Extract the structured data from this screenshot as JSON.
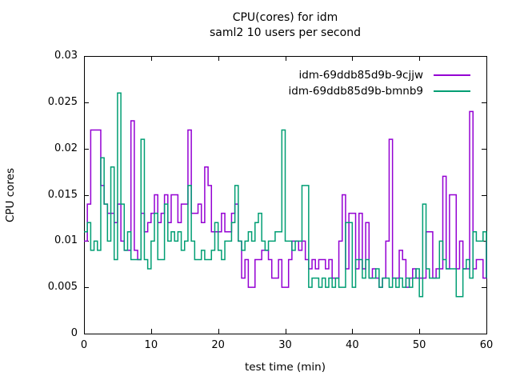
{
  "chart_data": {
    "type": "line",
    "style": "steps",
    "title": "CPU(cores) for idm",
    "subtitle": "saml2 10 users per second",
    "xlabel": "test time (min)",
    "ylabel": "CPU cores",
    "xlim": [
      0,
      60
    ],
    "ylim": [
      0,
      0.03
    ],
    "xticks": [
      0,
      10,
      20,
      30,
      40,
      50,
      60
    ],
    "xtick_labels": [
      "0",
      "10",
      "20",
      "30",
      "40",
      "50",
      "60"
    ],
    "yticks": [
      0,
      0.005,
      0.01,
      0.015,
      0.02,
      0.025,
      0.03
    ],
    "ytick_labels": [
      "0",
      "0.005",
      "0.01",
      "0.015",
      "0.02",
      "0.025",
      "0.03"
    ],
    "grid": false,
    "legend_position": "top-right-inside",
    "axis_color": "#000000",
    "x_start": 0,
    "x_step": 0.5,
    "series": [
      {
        "name": "idm-69ddb85d9b-9cjjw",
        "color": "#9400d3",
        "values": [
          0.01,
          0.014,
          0.022,
          0.022,
          0.022,
          0.016,
          0.014,
          0.013,
          0.013,
          0.012,
          0.014,
          0.01,
          0.009,
          0.009,
          0.023,
          0.009,
          0.008,
          0.013,
          0.011,
          0.012,
          0.013,
          0.015,
          0.012,
          0.013,
          0.015,
          0.012,
          0.015,
          0.015,
          0.012,
          0.014,
          0.014,
          0.022,
          0.013,
          0.013,
          0.014,
          0.012,
          0.018,
          0.016,
          0.011,
          0.011,
          0.011,
          0.013,
          0.011,
          0.011,
          0.013,
          0.014,
          0.01,
          0.006,
          0.008,
          0.005,
          0.005,
          0.008,
          0.008,
          0.009,
          0.009,
          0.008,
          0.006,
          0.006,
          0.008,
          0.005,
          0.005,
          0.008,
          0.01,
          0.01,
          0.009,
          0.01,
          0.008,
          0.007,
          0.008,
          0.007,
          0.008,
          0.008,
          0.007,
          0.008,
          0.006,
          0.006,
          0.01,
          0.015,
          0.007,
          0.013,
          0.013,
          0.007,
          0.013,
          0.007,
          0.012,
          0.006,
          0.007,
          0.006,
          0.005,
          0.006,
          0.01,
          0.021,
          0.006,
          0.006,
          0.009,
          0.008,
          0.005,
          0.006,
          0.007,
          0.006,
          0.006,
          0.006,
          0.011,
          0.011,
          0.006,
          0.007,
          0.007,
          0.017,
          0.007,
          0.015,
          0.015,
          0.007,
          0.01,
          0.007,
          0.007,
          0.024,
          0.007,
          0.008,
          0.008,
          0.006,
          0.01
        ]
      },
      {
        "name": "idm-69ddb85d9b-bmnb9",
        "color": "#009e73",
        "values": [
          0.011,
          0.012,
          0.009,
          0.01,
          0.009,
          0.019,
          0.014,
          0.01,
          0.018,
          0.008,
          0.026,
          0.014,
          0.009,
          0.011,
          0.008,
          0.008,
          0.008,
          0.021,
          0.008,
          0.007,
          0.01,
          0.013,
          0.008,
          0.008,
          0.014,
          0.01,
          0.011,
          0.01,
          0.011,
          0.009,
          0.01,
          0.016,
          0.01,
          0.008,
          0.008,
          0.009,
          0.008,
          0.008,
          0.009,
          0.012,
          0.009,
          0.008,
          0.01,
          0.01,
          0.012,
          0.016,
          0.01,
          0.009,
          0.01,
          0.011,
          0.01,
          0.012,
          0.013,
          0.01,
          0.009,
          0.01,
          0.01,
          0.011,
          0.011,
          0.022,
          0.01,
          0.01,
          0.009,
          0.01,
          0.01,
          0.016,
          0.016,
          0.005,
          0.006,
          0.006,
          0.005,
          0.006,
          0.005,
          0.006,
          0.005,
          0.006,
          0.005,
          0.005,
          0.012,
          0.012,
          0.005,
          0.008,
          0.008,
          0.006,
          0.008,
          0.006,
          0.006,
          0.007,
          0.005,
          0.006,
          0.006,
          0.005,
          0.006,
          0.005,
          0.006,
          0.005,
          0.006,
          0.005,
          0.006,
          0.007,
          0.004,
          0.014,
          0.007,
          0.006,
          0.006,
          0.006,
          0.01,
          0.008,
          0.007,
          0.007,
          0.007,
          0.004,
          0.004,
          0.007,
          0.008,
          0.006,
          0.011,
          0.01,
          0.01,
          0.011,
          0.006
        ]
      }
    ]
  }
}
